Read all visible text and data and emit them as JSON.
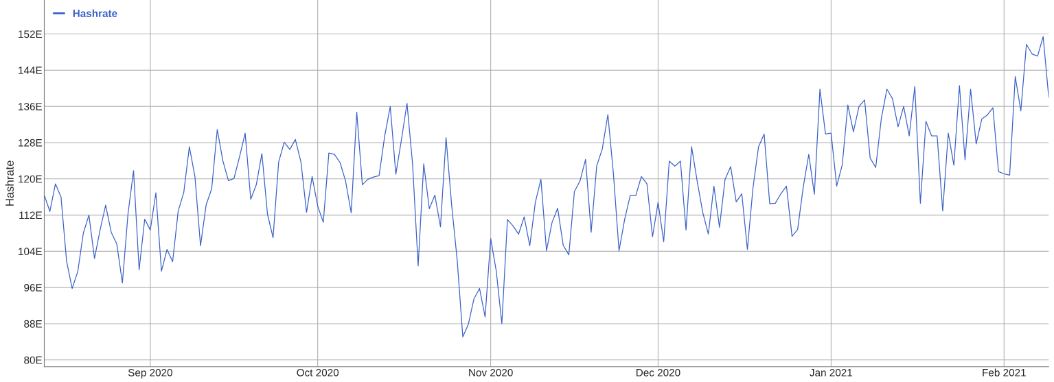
{
  "chart_data": {
    "type": "line",
    "ylabel": "Hashrate",
    "legend": "top left",
    "grid": true,
    "line_style": "solid",
    "marker": "none",
    "xlim": [
      "2020-08-13",
      "2021-02-09"
    ],
    "ylim": [
      78.5,
      159.5
    ],
    "xticks": [
      {
        "value": "2020-09-01",
        "label": "Sep 2020"
      },
      {
        "value": "2020-10-01",
        "label": "Oct 2020"
      },
      {
        "value": "2020-11-01",
        "label": "Nov 2020"
      },
      {
        "value": "2020-12-01",
        "label": "Dec 2020"
      },
      {
        "value": "2021-01-01",
        "label": "Jan 2021"
      },
      {
        "value": "2021-02-01",
        "label": "Feb 2021"
      }
    ],
    "yticks": [
      {
        "value": 80,
        "label": "80E"
      },
      {
        "value": 88,
        "label": "88E"
      },
      {
        "value": 96,
        "label": "96E"
      },
      {
        "value": 104,
        "label": "104E"
      },
      {
        "value": 112,
        "label": "112E"
      },
      {
        "value": 120,
        "label": "120E"
      },
      {
        "value": 128,
        "label": "128E"
      },
      {
        "value": 136,
        "label": "136E"
      },
      {
        "value": 144,
        "label": "144E"
      },
      {
        "value": 152,
        "label": "152E"
      }
    ],
    "x": [
      "2020-08-13",
      "2020-08-14",
      "2020-08-15",
      "2020-08-16",
      "2020-08-17",
      "2020-08-18",
      "2020-08-19",
      "2020-08-20",
      "2020-08-21",
      "2020-08-22",
      "2020-08-23",
      "2020-08-24",
      "2020-08-25",
      "2020-08-26",
      "2020-08-27",
      "2020-08-28",
      "2020-08-29",
      "2020-08-30",
      "2020-08-31",
      "2020-09-01",
      "2020-09-02",
      "2020-09-03",
      "2020-09-04",
      "2020-09-05",
      "2020-09-06",
      "2020-09-07",
      "2020-09-08",
      "2020-09-09",
      "2020-09-10",
      "2020-09-11",
      "2020-09-12",
      "2020-09-13",
      "2020-09-14",
      "2020-09-15",
      "2020-09-16",
      "2020-09-17",
      "2020-09-18",
      "2020-09-19",
      "2020-09-20",
      "2020-09-21",
      "2020-09-22",
      "2020-09-23",
      "2020-09-24",
      "2020-09-25",
      "2020-09-26",
      "2020-09-27",
      "2020-09-28",
      "2020-09-29",
      "2020-09-30",
      "2020-10-01",
      "2020-10-02",
      "2020-10-03",
      "2020-10-04",
      "2020-10-05",
      "2020-10-06",
      "2020-10-07",
      "2020-10-08",
      "2020-10-09",
      "2020-10-10",
      "2020-10-11",
      "2020-10-12",
      "2020-10-13",
      "2020-10-14",
      "2020-10-15",
      "2020-10-16",
      "2020-10-17",
      "2020-10-18",
      "2020-10-19",
      "2020-10-20",
      "2020-10-21",
      "2020-10-22",
      "2020-10-23",
      "2020-10-24",
      "2020-10-25",
      "2020-10-26",
      "2020-10-27",
      "2020-10-28",
      "2020-10-29",
      "2020-10-30",
      "2020-10-31",
      "2020-11-01",
      "2020-11-02",
      "2020-11-03",
      "2020-11-04",
      "2020-11-05",
      "2020-11-06",
      "2020-11-07",
      "2020-11-08",
      "2020-11-09",
      "2020-11-10",
      "2020-11-11",
      "2020-11-12",
      "2020-11-13",
      "2020-11-14",
      "2020-11-15",
      "2020-11-16",
      "2020-11-17",
      "2020-11-18",
      "2020-11-19",
      "2020-11-20",
      "2020-11-21",
      "2020-11-22",
      "2020-11-23",
      "2020-11-24",
      "2020-11-25",
      "2020-11-26",
      "2020-11-27",
      "2020-11-28",
      "2020-11-29",
      "2020-11-30",
      "2020-12-01",
      "2020-12-02",
      "2020-12-03",
      "2020-12-04",
      "2020-12-05",
      "2020-12-06",
      "2020-12-07",
      "2020-12-08",
      "2020-12-09",
      "2020-12-10",
      "2020-12-11",
      "2020-12-12",
      "2020-12-13",
      "2020-12-14",
      "2020-12-15",
      "2020-12-16",
      "2020-12-17",
      "2020-12-18",
      "2020-12-19",
      "2020-12-20",
      "2020-12-21",
      "2020-12-22",
      "2020-12-23",
      "2020-12-24",
      "2020-12-25",
      "2020-12-26",
      "2020-12-27",
      "2020-12-28",
      "2020-12-29",
      "2020-12-30",
      "2020-12-31",
      "2021-01-01",
      "2021-01-02",
      "2021-01-03",
      "2021-01-04",
      "2021-01-05",
      "2021-01-06",
      "2021-01-07",
      "2021-01-08",
      "2021-01-09",
      "2021-01-10",
      "2021-01-11",
      "2021-01-12",
      "2021-01-13",
      "2021-01-14",
      "2021-01-15",
      "2021-01-16",
      "2021-01-17",
      "2021-01-18",
      "2021-01-19",
      "2021-01-20",
      "2021-01-21",
      "2021-01-22",
      "2021-01-23",
      "2021-01-24",
      "2021-01-25",
      "2021-01-26",
      "2021-01-27",
      "2021-01-28",
      "2021-01-29",
      "2021-01-30",
      "2021-01-31",
      "2021-02-01",
      "2021-02-02",
      "2021-02-03",
      "2021-02-04",
      "2021-02-05",
      "2021-02-06",
      "2021-02-07",
      "2021-02-08",
      "2021-02-09"
    ],
    "series": [
      {
        "name": "Hashrate",
        "color": "#3b62c9",
        "values": [
          116.4,
          112.8,
          118.9,
          116,
          101.8,
          95.8,
          99.5,
          108,
          112,
          102.4,
          108.7,
          114.2,
          108.2,
          105.6,
          97,
          112.2,
          121.8,
          99.9,
          111.1,
          108.7,
          116.9,
          99.6,
          104.4,
          101.7,
          112.9,
          117,
          127.1,
          120.5,
          105.2,
          114.2,
          117.8,
          130.9,
          124,
          119.6,
          120.1,
          124.9,
          130.1,
          115.5,
          118.7,
          125.6,
          112.2,
          107,
          123.7,
          128.1,
          126.5,
          128.7,
          123.7,
          112.6,
          120.5,
          114,
          110.4,
          125.7,
          125.4,
          123.6,
          119.5,
          112.5,
          134.7,
          118.7,
          119.9,
          120.4,
          120.7,
          129.4,
          136,
          121,
          128.6,
          136.7,
          123.3,
          100.8,
          123.3,
          113.4,
          116.4,
          109.4,
          129.1,
          114.2,
          102,
          85.1,
          87.9,
          93.5,
          95.8,
          89.5,
          106.8,
          99.6,
          88,
          111,
          109.6,
          107.8,
          111.6,
          105.2,
          114.8,
          119.9,
          104.1,
          110.4,
          113.5,
          105.3,
          103.2,
          117.2,
          119.5,
          124.3,
          108.2,
          122.9,
          126.6,
          134.2,
          121,
          104.1,
          111,
          116.3,
          116.3,
          120.5,
          118.9,
          107.2,
          114.8,
          106.1,
          123.9,
          122.8,
          123.9,
          108.7,
          127.1,
          119.5,
          112.6,
          107.8,
          118.4,
          109.3,
          119.9,
          122.7,
          114.9,
          116.7,
          104.4,
          118,
          127.1,
          129.9,
          114.5,
          114.6,
          116.7,
          118.4,
          107.3,
          108.8,
          118.1,
          125.4,
          116.6,
          139.8,
          129.9,
          130.1,
          118.4,
          123.1,
          136.3,
          130.4,
          136,
          137.4,
          124.6,
          122.5,
          133.3,
          139.8,
          137.7,
          131.5,
          136,
          129.5,
          140.4,
          114.6,
          132.7,
          129.5,
          129.5,
          112.9,
          130.1,
          123,
          140.6,
          124.2,
          139.8,
          127.7,
          133.2,
          134.1,
          135.7,
          121.6,
          121.1,
          120.8,
          142.6,
          135,
          149.7,
          147.6,
          147.1,
          151.4,
          138
        ]
      }
    ]
  }
}
